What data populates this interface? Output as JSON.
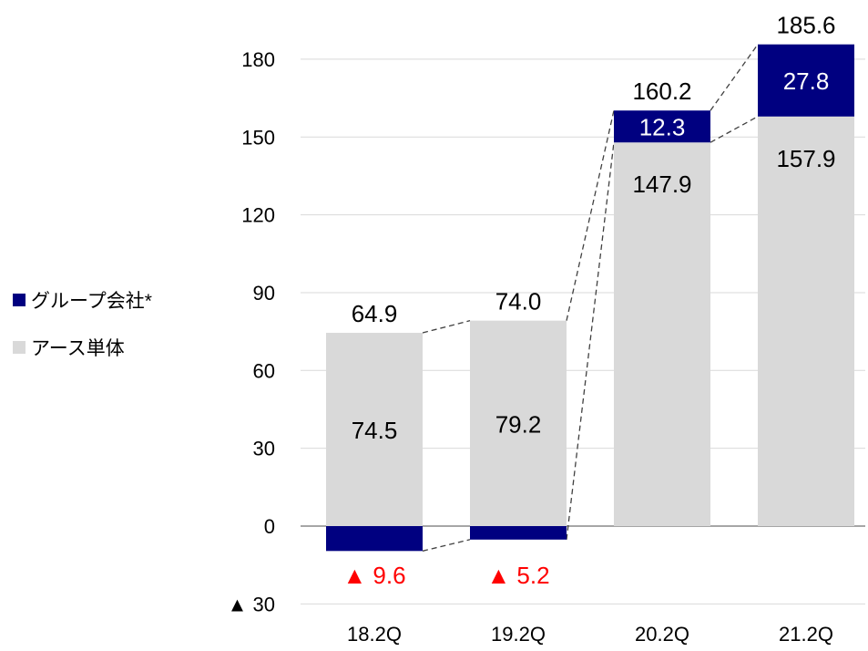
{
  "chart_data": {
    "type": "bar",
    "stacked": true,
    "categories": [
      "18.2Q",
      "19.2Q",
      "20.2Q",
      "21.2Q"
    ],
    "series": [
      {
        "name": "グループ会社*",
        "values": [
          -9.6,
          -5.2,
          12.3,
          27.8
        ],
        "color": "#000080",
        "labels": [
          "▲ 9.6",
          "▲ 5.2",
          "12.3",
          "27.8"
        ]
      },
      {
        "name": "アース単体",
        "values": [
          74.5,
          79.2,
          147.9,
          157.9
        ],
        "color": "#d9d9d9",
        "labels": [
          "74.5",
          "79.2",
          "147.9",
          "157.9"
        ]
      }
    ],
    "totals": [
      64.9,
      74.0,
      160.2,
      185.6
    ],
    "total_labels": [
      "64.9",
      "74.0",
      "160.2",
      "185.6"
    ],
    "negative_label_color": "#ff0000",
    "ylim": [
      -30,
      180
    ],
    "yticks": [
      -30,
      0,
      30,
      60,
      90,
      120,
      150,
      180
    ],
    "ytick_labels": [
      "▲ 30",
      "0",
      "30",
      "60",
      "90",
      "120",
      "150",
      "180"
    ],
    "grid": true,
    "connector_lines": "dashed",
    "legend_position": "left"
  }
}
